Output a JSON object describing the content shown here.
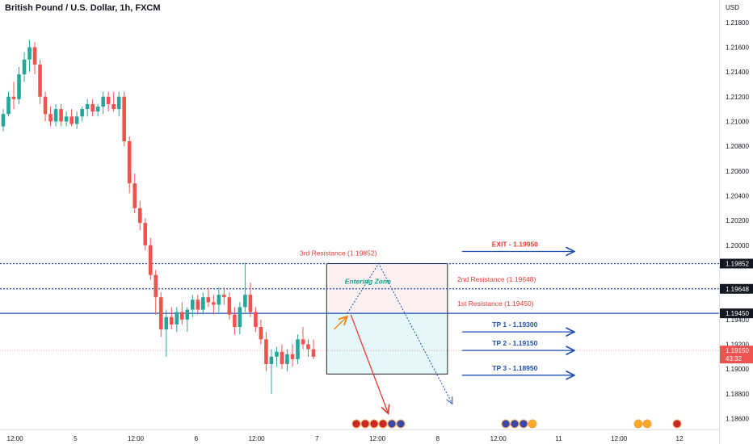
{
  "header": {
    "title": "British Pound / U.S. Dollar, 1h, FXCM"
  },
  "colors": {
    "bull": "#26a69a",
    "bear": "#ef5350",
    "blue": "#1e4fb0",
    "tp": "#2962ff",
    "red": "#e53935",
    "teal": "#0aa38a",
    "orange": "#f57c00",
    "label_bg": "#131722"
  },
  "chart_data": {
    "type": "candlestick",
    "title": "British Pound / U.S. Dollar, 1h, FXCM",
    "currency": "USD",
    "y_ticks": [
      "1.21800",
      "1.21600",
      "1.21400",
      "1.21200",
      "1.21000",
      "1.20800",
      "1.20600",
      "1.20400",
      "1.20200",
      "1.20000",
      "1.19400",
      "1.19200",
      "1.19000",
      "1.18800",
      "1.18600"
    ],
    "x_ticks": [
      {
        "label": "12:00",
        "day": 4.5
      },
      {
        "label": "5",
        "day": 5.0
      },
      {
        "label": "12:00",
        "day": 5.5
      },
      {
        "label": "6",
        "day": 6.0
      },
      {
        "label": "12:00",
        "day": 6.5
      },
      {
        "label": "7",
        "day": 7.0
      },
      {
        "label": "12:00",
        "day": 7.5
      },
      {
        "label": "8",
        "day": 8.0
      },
      {
        "label": "12:00",
        "day": 8.5
      },
      {
        "label": "11",
        "day": 9.0
      },
      {
        "label": "12:00",
        "day": 9.5
      },
      {
        "label": "12",
        "day": 10.0
      }
    ],
    "x_domain": [
      4.376,
      10.328
    ],
    "y_domain": [
      1.18512,
      1.21981
    ],
    "candles": [
      [
        1.2096,
        1.211,
        1.2092,
        1.2106
      ],
      [
        1.2106,
        1.2124,
        1.2104,
        1.212
      ],
      [
        1.212,
        1.2132,
        1.211,
        1.2118
      ],
      [
        1.2118,
        1.2144,
        1.2114,
        1.2138
      ],
      [
        1.2138,
        1.2156,
        1.2132,
        1.215
      ],
      [
        1.215,
        1.2166,
        1.214,
        1.216
      ],
      [
        1.216,
        1.2164,
        1.2138,
        1.2146
      ],
      [
        1.2146,
        1.215,
        1.2114,
        1.212
      ],
      [
        1.212,
        1.2124,
        1.21,
        1.2106
      ],
      [
        1.2106,
        1.2112,
        1.2096,
        1.21
      ],
      [
        1.21,
        1.2114,
        1.2096,
        1.211
      ],
      [
        1.211,
        1.2114,
        1.2096,
        1.21
      ],
      [
        1.21,
        1.2108,
        1.2096,
        1.2104
      ],
      [
        1.2104,
        1.211,
        1.2096,
        1.2098
      ],
      [
        1.2098,
        1.2108,
        1.2094,
        1.2104
      ],
      [
        1.2104,
        1.2112,
        1.21,
        1.211
      ],
      [
        1.211,
        1.2118,
        1.2104,
        1.2114
      ],
      [
        1.2114,
        1.2118,
        1.2104,
        1.2108
      ],
      [
        1.2108,
        1.2114,
        1.2104,
        1.2112
      ],
      [
        1.2112,
        1.2124,
        1.2106,
        1.212
      ],
      [
        1.212,
        1.2124,
        1.2108,
        1.2114
      ],
      [
        1.2114,
        1.2124,
        1.2108,
        1.211
      ],
      [
        1.211,
        1.2124,
        1.2104,
        1.212
      ],
      [
        1.212,
        1.2124,
        1.208,
        1.2084
      ],
      [
        1.2084,
        1.2088,
        1.2042,
        1.205
      ],
      [
        1.205,
        1.2058,
        1.2026,
        1.203
      ],
      [
        1.203,
        1.2036,
        1.2012,
        1.2018
      ],
      [
        1.2018,
        1.2022,
        1.1996,
        1.2
      ],
      [
        1.2,
        1.2006,
        1.1972,
        1.1976
      ],
      [
        1.1976,
        1.198,
        1.1944,
        1.1958
      ],
      [
        1.1958,
        1.1962,
        1.1926,
        1.1932
      ],
      [
        1.1932,
        1.1948,
        1.191,
        1.1942
      ],
      [
        1.1942,
        1.195,
        1.1932,
        1.1936
      ],
      [
        1.1936,
        1.195,
        1.193,
        1.1946
      ],
      [
        1.1946,
        1.1954,
        1.1936,
        1.194
      ],
      [
        1.194,
        1.195,
        1.193,
        1.1948
      ],
      [
        1.1948,
        1.196,
        1.1942,
        1.1956
      ],
      [
        1.1956,
        1.196,
        1.1944,
        1.1948
      ],
      [
        1.1948,
        1.1962,
        1.1944,
        1.1958
      ],
      [
        1.1958,
        1.1966,
        1.195,
        1.1954
      ],
      [
        1.1954,
        1.196,
        1.1944,
        1.1952
      ],
      [
        1.1952,
        1.1966,
        1.1946,
        1.196
      ],
      [
        1.196,
        1.1966,
        1.1952,
        1.1958
      ],
      [
        1.1958,
        1.1962,
        1.194,
        1.1944
      ],
      [
        1.1944,
        1.195,
        1.1928,
        1.1934
      ],
      [
        1.1934,
        1.1954,
        1.1928,
        1.195
      ],
      [
        1.195,
        1.1986,
        1.1946,
        1.196
      ],
      [
        1.196,
        1.197,
        1.1942,
        1.1946
      ],
      [
        1.1946,
        1.195,
        1.193,
        1.1934
      ],
      [
        1.1934,
        1.194,
        1.192,
        1.1924
      ],
      [
        1.1924,
        1.193,
        1.1898,
        1.1904
      ],
      [
        1.1904,
        1.1916,
        1.188,
        1.191
      ],
      [
        1.191,
        1.1918,
        1.1902,
        1.1914
      ],
      [
        1.1914,
        1.192,
        1.19,
        1.1904
      ],
      [
        1.1904,
        1.1916,
        1.1898,
        1.1912
      ],
      [
        1.1912,
        1.192,
        1.1902,
        1.1908
      ],
      [
        1.1908,
        1.1928,
        1.1904,
        1.1924
      ],
      [
        1.1924,
        1.1934,
        1.1916,
        1.192
      ],
      [
        1.192,
        1.1924,
        1.191,
        1.1916
      ],
      [
        1.1916,
        1.1924,
        1.1908,
        1.191
      ]
    ],
    "levels": [
      {
        "name": "3rd Resistance (1.19852)",
        "value": 1.19852,
        "tag": "1.19852",
        "style": "dotted"
      },
      {
        "name": "2nd Resistance (1.19648)",
        "value": 1.19648,
        "tag": "1.19648",
        "style": "dotted"
      },
      {
        "name": "1st Resistance (1.19450)",
        "value": 1.1945,
        "tag": "1.19450",
        "style": "solid"
      }
    ],
    "current_price": {
      "value": 1.1915,
      "label": "1.19150",
      "countdown": "43:32"
    },
    "targets": [
      {
        "label": "EXIT - 1.19950",
        "value": 1.1995
      },
      {
        "label": "TP 1 - 1.19300",
        "value": 1.193
      },
      {
        "label": "TP 2 - 1.19150",
        "value": 1.1915
      },
      {
        "label": "TP 3 - 1.18950",
        "value": 1.1895
      }
    ],
    "zone": {
      "label": "Entering Zone",
      "top": 1.19852,
      "bottom": 1.1896
    },
    "event_markers": [
      {
        "flags": [
          "gb",
          "gb",
          "gb",
          "gb",
          "us",
          "us"
        ]
      },
      {
        "flags": [
          "us",
          "us",
          "us",
          "eu"
        ]
      },
      {
        "flags": [
          "eu",
          "eu"
        ]
      },
      {
        "flags": [
          "gb"
        ]
      }
    ]
  }
}
